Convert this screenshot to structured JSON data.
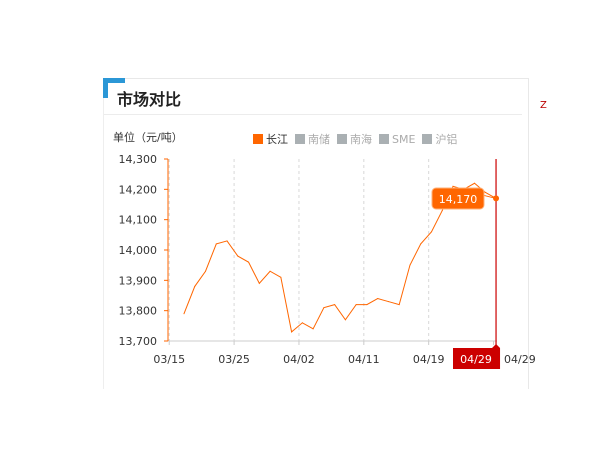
{
  "title": "市场对比",
  "unit_label": "单位（元/吨）",
  "legend": [
    {
      "label": "长江",
      "active": true,
      "color": "#ff6600"
    },
    {
      "label": "南储",
      "active": false,
      "color": "#aab0b3"
    },
    {
      "label": "南海",
      "active": false,
      "color": "#aab0b3"
    },
    {
      "label": "SME",
      "active": false,
      "color": "#aab0b3"
    },
    {
      "label": "沪铝",
      "active": false,
      "color": "#aab0b3"
    }
  ],
  "side_mark": "Z",
  "chart_data": {
    "type": "line",
    "series": [
      {
        "name": "长江",
        "color": "#ff6600",
        "values": [
          13790,
          13880,
          13930,
          14020,
          14030,
          13980,
          13960,
          13890,
          13930,
          13910,
          13730,
          13760,
          13740,
          13810,
          13820,
          13770,
          13820,
          13820,
          13840,
          13830,
          13820,
          13950,
          14020,
          14060,
          14130,
          14210,
          14200,
          14220,
          14190,
          14170
        ]
      }
    ],
    "x_ticks": [
      "03/15",
      "03/25",
      "04/02",
      "04/11",
      "04/19",
      "04/29"
    ],
    "y_ticks": [
      "14,300",
      "14,200",
      "14,100",
      "14,000",
      "13,900",
      "13,800",
      "13,700"
    ],
    "ylim": [
      13700,
      14300
    ],
    "grid": "vertical dashed",
    "tooltip": {
      "value": "14,170",
      "date": "04/29"
    },
    "crosshair_color": "#cc0000"
  }
}
